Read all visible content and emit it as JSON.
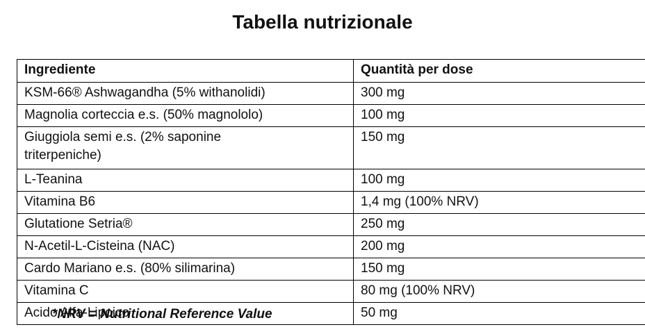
{
  "page": {
    "title": "Tabella nutrizionale",
    "footnote": "*NRV = Nutritional Reference Value",
    "background_color": "#ffffff",
    "text_color": "#111111",
    "border_color": "#000000"
  },
  "table": {
    "headers": [
      "Ingrediente",
      "Quantità per dose"
    ],
    "rows": [
      [
        "KSM-66® Ashwagandha (5% withanolidi)",
        "300 mg"
      ],
      [
        "Magnolia corteccia e.s. (50% magnololo)",
        "100 mg"
      ],
      [
        "Giuggiola semi e.s. (2% saponine triterpeniche)",
        "150 mg"
      ],
      [
        "L-Teanina",
        "100 mg"
      ],
      [
        "Vitamina B6",
        "1,4 mg (100% NRV)"
      ],
      [
        "Glutatione Setria®",
        "250 mg"
      ],
      [
        "N-Acetil-L-Cisteina (NAC)",
        "200 mg"
      ],
      [
        "Cardo Mariano e.s. (80% silimarina)",
        "150 mg"
      ],
      [
        "Vitamina C",
        "80 mg (100% NRV)"
      ],
      [
        "Acido Alfa-Lipoico",
        "50 mg"
      ]
    ]
  }
}
